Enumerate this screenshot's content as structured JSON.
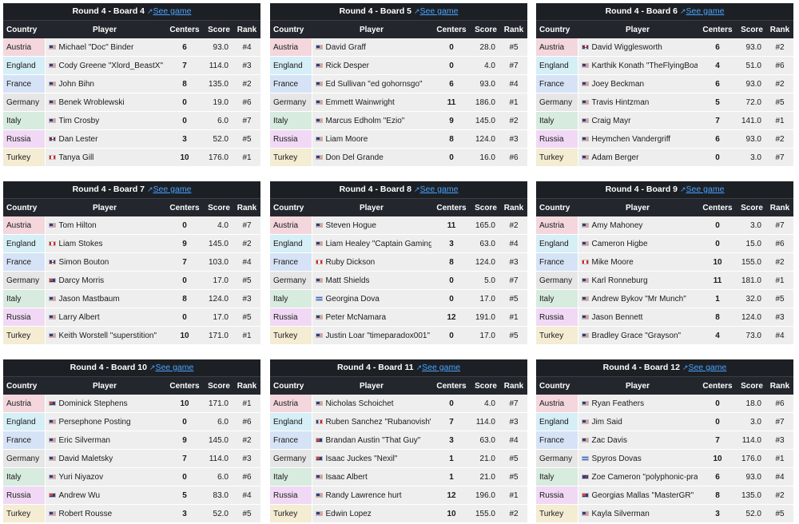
{
  "colors": {
    "Austria": "#f3d7dd",
    "England": "#d6eef6",
    "France": "#d6e3f6",
    "Germany": "#e6e6e6",
    "Italy": "#d7ebdf",
    "Russia": "#f1d9f5",
    "Turkey": "#f4ecd3",
    "header_bg": "#23272d",
    "link": "#4aa3ff"
  },
  "headers": {
    "country": "Country",
    "player": "Player",
    "centers": "Centers",
    "score": "Score",
    "rank": "Rank"
  },
  "link_label": "See game",
  "boards": [
    {
      "title": "Round 4 - Board 4",
      "rows": [
        {
          "country": "Austria",
          "flag": "us",
          "player": "Michael \"Doc\" Binder",
          "centers": "6",
          "score": "93.0",
          "rank": "#4"
        },
        {
          "country": "England",
          "flag": "us",
          "player": "Cody Greene \"Xlord_BeastX\"",
          "centers": "7",
          "score": "114.0",
          "rank": "#3"
        },
        {
          "country": "France",
          "flag": "us",
          "player": "John Bihn",
          "centers": "8",
          "score": "135.0",
          "rank": "#2"
        },
        {
          "country": "Germany",
          "flag": "us",
          "player": "Benek Wroblewski",
          "centers": "0",
          "score": "19.0",
          "rank": "#6"
        },
        {
          "country": "Italy",
          "flag": "us",
          "player": "Tim Crosby",
          "centers": "0",
          "score": "6.0",
          "rank": "#7"
        },
        {
          "country": "Russia",
          "flag": "uk",
          "player": "Dan Lester",
          "centers": "3",
          "score": "52.0",
          "rank": "#5"
        },
        {
          "country": "Turkey",
          "flag": "ca",
          "player": "Tanya Gill",
          "centers": "10",
          "score": "176.0",
          "rank": "#1"
        }
      ]
    },
    {
      "title": "Round 4 - Board 5",
      "rows": [
        {
          "country": "Austria",
          "flag": "us",
          "player": "David Graff",
          "centers": "0",
          "score": "28.0",
          "rank": "#5"
        },
        {
          "country": "England",
          "flag": "us",
          "player": "Rick Desper",
          "centers": "0",
          "score": "4.0",
          "rank": "#7"
        },
        {
          "country": "France",
          "flag": "us",
          "player": "Ed Sullivan \"ed gohornsgo\"",
          "centers": "6",
          "score": "93.0",
          "rank": "#4"
        },
        {
          "country": "Germany",
          "flag": "us",
          "player": "Emmett Wainwright",
          "centers": "11",
          "score": "186.0",
          "rank": "#1"
        },
        {
          "country": "Italy",
          "flag": "us",
          "player": "Marcus Edholm \"Ezio\"",
          "centers": "9",
          "score": "145.0",
          "rank": "#2"
        },
        {
          "country": "Russia",
          "flag": "us",
          "player": "Liam Moore",
          "centers": "8",
          "score": "124.0",
          "rank": "#3"
        },
        {
          "country": "Turkey",
          "flag": "us",
          "player": "Don Del Grande",
          "centers": "0",
          "score": "16.0",
          "rank": "#6"
        }
      ]
    },
    {
      "title": "Round 4 - Board 6",
      "rows": [
        {
          "country": "Austria",
          "flag": "uk",
          "player": "David Wigglesworth",
          "centers": "6",
          "score": "93.0",
          "rank": "#2"
        },
        {
          "country": "England",
          "flag": "us",
          "player": "Karthik Konath \"TheFlyingBoat\"",
          "centers": "4",
          "score": "51.0",
          "rank": "#6"
        },
        {
          "country": "France",
          "flag": "us",
          "player": "Joey Beckman",
          "centers": "6",
          "score": "93.0",
          "rank": "#2"
        },
        {
          "country": "Germany",
          "flag": "us",
          "player": "Travis Hintzman",
          "centers": "5",
          "score": "72.0",
          "rank": "#5"
        },
        {
          "country": "Italy",
          "flag": "us",
          "player": "Craig Mayr",
          "centers": "7",
          "score": "141.0",
          "rank": "#1"
        },
        {
          "country": "Russia",
          "flag": "us",
          "player": "Heymchen Vandergriff",
          "centers": "6",
          "score": "93.0",
          "rank": "#2"
        },
        {
          "country": "Turkey",
          "flag": "us",
          "player": "Adam Berger",
          "centers": "0",
          "score": "3.0",
          "rank": "#7"
        }
      ]
    },
    {
      "title": "Round 4 - Board 7",
      "rows": [
        {
          "country": "Austria",
          "flag": "us",
          "player": "Tom Hilton",
          "centers": "0",
          "score": "4.0",
          "rank": "#7"
        },
        {
          "country": "England",
          "flag": "ca",
          "player": "Liam Stokes",
          "centers": "9",
          "score": "145.0",
          "rank": "#2"
        },
        {
          "country": "France",
          "flag": "uk",
          "player": "Simon Bouton",
          "centers": "7",
          "score": "103.0",
          "rank": "#4"
        },
        {
          "country": "Germany",
          "flag": "au",
          "player": "Darcy Morris",
          "centers": "0",
          "score": "17.0",
          "rank": "#5"
        },
        {
          "country": "Italy",
          "flag": "us",
          "player": "Jason Mastbaum",
          "centers": "8",
          "score": "124.0",
          "rank": "#3"
        },
        {
          "country": "Russia",
          "flag": "us",
          "player": "Larry Albert",
          "centers": "0",
          "score": "17.0",
          "rank": "#5"
        },
        {
          "country": "Turkey",
          "flag": "us",
          "player": "Keith Worstell \"superstition\"",
          "centers": "10",
          "score": "171.0",
          "rank": "#1"
        }
      ]
    },
    {
      "title": "Round 4 - Board 8",
      "rows": [
        {
          "country": "Austria",
          "flag": "us",
          "player": "Steven Hogue",
          "centers": "11",
          "score": "165.0",
          "rank": "#2"
        },
        {
          "country": "England",
          "flag": "us",
          "player": "Liam Healey \"Captain Gaming\"",
          "centers": "3",
          "score": "63.0",
          "rank": "#4"
        },
        {
          "country": "France",
          "flag": "ca",
          "player": "Ruby Dickson",
          "centers": "8",
          "score": "124.0",
          "rank": "#3"
        },
        {
          "country": "Germany",
          "flag": "us",
          "player": "Matt Shields",
          "centers": "0",
          "score": "5.0",
          "rank": "#7"
        },
        {
          "country": "Italy",
          "flag": "gr",
          "player": "Georgina Dova",
          "centers": "0",
          "score": "17.0",
          "rank": "#5"
        },
        {
          "country": "Russia",
          "flag": "us",
          "player": "Peter McNamara",
          "centers": "12",
          "score": "191.0",
          "rank": "#1"
        },
        {
          "country": "Turkey",
          "flag": "us",
          "player": "Justin Loar \"timeparadox001\"",
          "centers": "0",
          "score": "17.0",
          "rank": "#5"
        }
      ]
    },
    {
      "title": "Round 4 - Board 9",
      "rows": [
        {
          "country": "Austria",
          "flag": "us",
          "player": "Amy Mahoney",
          "centers": "0",
          "score": "3.0",
          "rank": "#7"
        },
        {
          "country": "England",
          "flag": "us",
          "player": "Cameron Higbe",
          "centers": "0",
          "score": "15.0",
          "rank": "#6"
        },
        {
          "country": "France",
          "flag": "ca",
          "player": "Mike Moore",
          "centers": "10",
          "score": "155.0",
          "rank": "#2"
        },
        {
          "country": "Germany",
          "flag": "us",
          "player": "Karl Ronneburg",
          "centers": "11",
          "score": "181.0",
          "rank": "#1"
        },
        {
          "country": "Italy",
          "flag": "us",
          "player": "Andrew Bykov \"Mr Munch\"",
          "centers": "1",
          "score": "32.0",
          "rank": "#5"
        },
        {
          "country": "Russia",
          "flag": "us",
          "player": "Jason Bennett",
          "centers": "8",
          "score": "124.0",
          "rank": "#3"
        },
        {
          "country": "Turkey",
          "flag": "us",
          "player": "Bradley Grace \"Grayson\"",
          "centers": "4",
          "score": "73.0",
          "rank": "#4"
        }
      ]
    },
    {
      "title": "Round 4 - Board 10",
      "rows": [
        {
          "country": "Austria",
          "flag": "au",
          "player": "Dominick Stephens",
          "centers": "10",
          "score": "171.0",
          "rank": "#1"
        },
        {
          "country": "England",
          "flag": "us",
          "player": "Persephone Posting",
          "centers": "0",
          "score": "6.0",
          "rank": "#6"
        },
        {
          "country": "France",
          "flag": "us",
          "player": "Eric Silverman",
          "centers": "9",
          "score": "145.0",
          "rank": "#2"
        },
        {
          "country": "Germany",
          "flag": "us",
          "player": "David Maletsky",
          "centers": "7",
          "score": "114.0",
          "rank": "#3"
        },
        {
          "country": "Italy",
          "flag": "us",
          "player": "Yuri Niyazov",
          "centers": "0",
          "score": "6.0",
          "rank": "#6"
        },
        {
          "country": "Russia",
          "flag": "au",
          "player": "Andrew Wu",
          "centers": "5",
          "score": "83.0",
          "rank": "#4"
        },
        {
          "country": "Turkey",
          "flag": "us",
          "player": "Robert Rousse",
          "centers": "3",
          "score": "52.0",
          "rank": "#5"
        }
      ]
    },
    {
      "title": "Round 4 - Board 11",
      "rows": [
        {
          "country": "Austria",
          "flag": "us",
          "player": "Nicholas Schoichet",
          "centers": "0",
          "score": "4.0",
          "rank": "#7"
        },
        {
          "country": "England",
          "flag": "fr",
          "player": "Ruben Sanchez \"Rubanovish\"",
          "centers": "7",
          "score": "114.0",
          "rank": "#3"
        },
        {
          "country": "France",
          "flag": "au",
          "player": "Brandan Austin \"That Guy\"",
          "centers": "3",
          "score": "63.0",
          "rank": "#4"
        },
        {
          "country": "Germany",
          "flag": "au",
          "player": "Isaac Juckes \"Nexil\"",
          "centers": "1",
          "score": "21.0",
          "rank": "#5"
        },
        {
          "country": "Italy",
          "flag": "us",
          "player": "Isaac Albert",
          "centers": "1",
          "score": "21.0",
          "rank": "#5"
        },
        {
          "country": "Russia",
          "flag": "us",
          "player": "Randy Lawrence hurt",
          "centers": "12",
          "score": "196.0",
          "rank": "#1"
        },
        {
          "country": "Turkey",
          "flag": "us",
          "player": "Edwin Lopez",
          "centers": "10",
          "score": "155.0",
          "rank": "#2"
        }
      ]
    },
    {
      "title": "Round 4 - Board 12",
      "rows": [
        {
          "country": "Austria",
          "flag": "us",
          "player": "Ryan Feathers",
          "centers": "0",
          "score": "18.0",
          "rank": "#6"
        },
        {
          "country": "England",
          "flag": "us",
          "player": "Jim Said",
          "centers": "0",
          "score": "3.0",
          "rank": "#7"
        },
        {
          "country": "France",
          "flag": "us",
          "player": "Zac Davis",
          "centers": "7",
          "score": "114.0",
          "rank": "#3"
        },
        {
          "country": "Germany",
          "flag": "gr",
          "player": "Spyros Dovas",
          "centers": "10",
          "score": "176.0",
          "rank": "#1"
        },
        {
          "country": "Italy",
          "flag": "nz",
          "player": "Zoe Cameron \"polyphonic-prairies\"",
          "centers": "6",
          "score": "93.0",
          "rank": "#4"
        },
        {
          "country": "Russia",
          "flag": "au",
          "player": "Georgias Mallas \"MasterGR\"",
          "centers": "8",
          "score": "135.0",
          "rank": "#2"
        },
        {
          "country": "Turkey",
          "flag": "us",
          "player": "Kayla Silverman",
          "centers": "3",
          "score": "52.0",
          "rank": "#5"
        }
      ]
    }
  ]
}
